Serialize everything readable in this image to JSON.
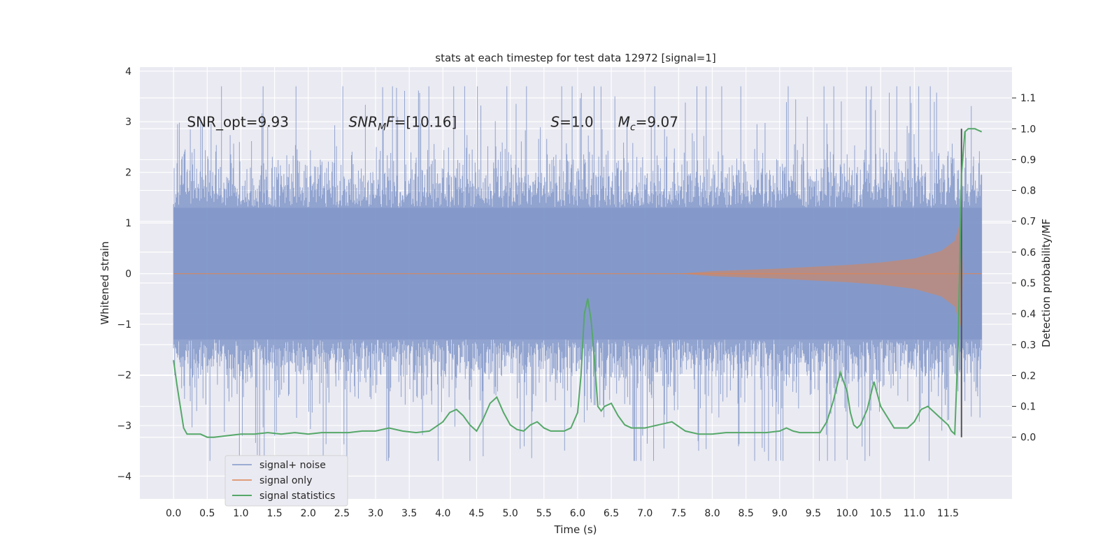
{
  "chart_data": {
    "type": "line",
    "title": "stats at each timestep for test data 12972 [signal=1]",
    "xlabel": "Time (s)",
    "ylabel_left": "Whitened strain",
    "ylabel_right": "Detection probability/MF",
    "xlim": [
      -0.5,
      12.45
    ],
    "ylim_left": [
      -4.45,
      4.08
    ],
    "ylim_right": [
      -0.2,
      1.2
    ],
    "grid": true,
    "x_ticks": [
      "0.0",
      "0.5",
      "1.0",
      "1.5",
      "2.0",
      "2.5",
      "3.0",
      "3.5",
      "4.0",
      "4.5",
      "5.0",
      "5.5",
      "6.0",
      "6.5",
      "7.0",
      "7.5",
      "8.0",
      "8.5",
      "9.0",
      "9.5",
      "10.0",
      "10.5",
      "11.0",
      "11.5"
    ],
    "y_left_ticks": [
      "−4",
      "−3",
      "−2",
      "−1",
      "0",
      "1",
      "2",
      "3",
      "4"
    ],
    "y_right_ticks": [
      "0.0",
      "0.1",
      "0.2",
      "0.3",
      "0.4",
      "0.5",
      "0.6",
      "0.7",
      "0.8",
      "0.9",
      "1.0",
      "1.1"
    ],
    "annotations": [
      {
        "text": "SNR_opt=9.93",
        "x": 0.2,
        "y": 2.9
      },
      {
        "text": "SNR",
        "sub": "M",
        "suffix": "F=[10.16]",
        "x": 2.6,
        "y": 2.9
      },
      {
        "text": "S",
        "suffix": "=1.0",
        "x": 5.6,
        "y": 2.9
      },
      {
        "text": "M",
        "sub": "c",
        "suffix": "=9.07",
        "x": 6.6,
        "y": 2.9
      }
    ],
    "legend": {
      "placement": "lower-left",
      "entries": [
        "signal+ noise",
        "signal only",
        "signal statistics"
      ]
    },
    "colors": {
      "noise": "#8197c9",
      "signal": "#dd8452",
      "stats": "#55a868",
      "vline": "#555555",
      "background": "#eaeaf2",
      "grid": "#ffffff"
    },
    "series": [
      {
        "name": "signal+ noise",
        "axis": "left",
        "x_range": [
          0.0,
          12.0
        ],
        "envelope": {
          "abs_max": [
            [
              0.0,
              1.3
            ],
            [
              12.0,
              1.3
            ]
          ],
          "spike_max": 3.7
        }
      },
      {
        "name": "signal only",
        "axis": "left",
        "x_range": [
          0.0,
          12.0
        ],
        "envelope": {
          "abs_max": [
            [
              0.0,
              0.0
            ],
            [
              7.5,
              0.0
            ],
            [
              8.0,
              0.05
            ],
            [
              9.0,
              0.1
            ],
            [
              10.0,
              0.17
            ],
            [
              10.5,
              0.22
            ],
            [
              11.0,
              0.3
            ],
            [
              11.4,
              0.45
            ],
            [
              11.6,
              0.65
            ],
            [
              11.7,
              1.1
            ],
            [
              11.72,
              0.0
            ],
            [
              12.0,
              0.0
            ]
          ]
        }
      },
      {
        "name": "signal statistics",
        "axis": "right",
        "x": [
          0.0,
          0.05,
          0.1,
          0.15,
          0.2,
          0.3,
          0.4,
          0.5,
          0.6,
          0.8,
          1.0,
          1.2,
          1.4,
          1.6,
          1.8,
          2.0,
          2.2,
          2.4,
          2.6,
          2.8,
          3.0,
          3.2,
          3.4,
          3.6,
          3.8,
          4.0,
          4.1,
          4.2,
          4.3,
          4.4,
          4.5,
          4.6,
          4.7,
          4.8,
          4.9,
          5.0,
          5.1,
          5.2,
          5.3,
          5.4,
          5.5,
          5.6,
          5.7,
          5.8,
          5.9,
          6.0,
          6.05,
          6.1,
          6.15,
          6.2,
          6.25,
          6.3,
          6.35,
          6.4,
          6.5,
          6.6,
          6.7,
          6.8,
          7.0,
          7.2,
          7.4,
          7.6,
          7.7,
          7.8,
          7.9,
          8.0,
          8.2,
          8.5,
          8.8,
          9.0,
          9.1,
          9.2,
          9.3,
          9.4,
          9.6,
          9.7,
          9.8,
          9.9,
          10.0,
          10.05,
          10.1,
          10.15,
          10.2,
          10.3,
          10.4,
          10.5,
          10.7,
          10.9,
          11.0,
          11.1,
          11.2,
          11.3,
          11.4,
          11.5,
          11.55,
          11.6,
          11.65,
          11.7,
          11.75,
          11.8,
          11.9,
          12.0
        ],
        "values": [
          0.25,
          0.17,
          0.1,
          0.03,
          0.01,
          0.01,
          0.01,
          0.0,
          0.0,
          0.005,
          0.01,
          0.01,
          0.015,
          0.01,
          0.015,
          0.01,
          0.015,
          0.015,
          0.015,
          0.02,
          0.02,
          0.03,
          0.02,
          0.015,
          0.02,
          0.05,
          0.08,
          0.09,
          0.07,
          0.04,
          0.02,
          0.06,
          0.11,
          0.13,
          0.08,
          0.04,
          0.025,
          0.02,
          0.04,
          0.05,
          0.03,
          0.02,
          0.02,
          0.02,
          0.03,
          0.08,
          0.2,
          0.4,
          0.45,
          0.38,
          0.25,
          0.1,
          0.085,
          0.1,
          0.11,
          0.07,
          0.04,
          0.03,
          0.03,
          0.04,
          0.05,
          0.02,
          0.015,
          0.01,
          0.01,
          0.01,
          0.015,
          0.015,
          0.015,
          0.02,
          0.03,
          0.02,
          0.015,
          0.015,
          0.015,
          0.05,
          0.12,
          0.21,
          0.15,
          0.08,
          0.04,
          0.03,
          0.04,
          0.09,
          0.18,
          0.1,
          0.03,
          0.03,
          0.05,
          0.09,
          0.1,
          0.08,
          0.06,
          0.04,
          0.02,
          0.01,
          0.3,
          0.85,
          0.99,
          1.0,
          1.0,
          0.99
        ]
      }
    ],
    "vlines": [
      {
        "x": 11.7,
        "axis": "right",
        "y_range": [
          0.0,
          1.0
        ]
      }
    ]
  }
}
